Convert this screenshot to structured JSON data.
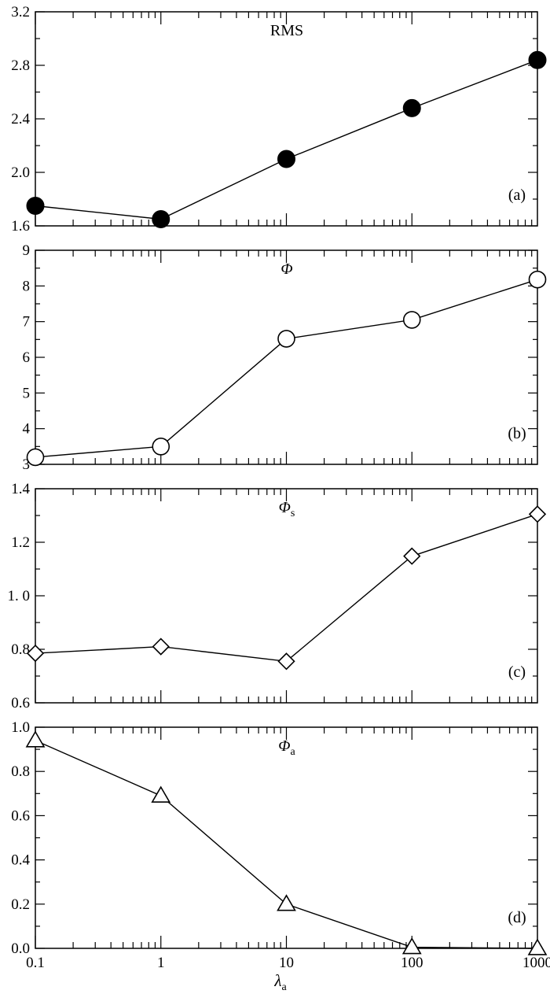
{
  "chart_data": [
    {
      "type": "line",
      "panel": "(a)",
      "title": "RMS",
      "title_sub": "",
      "x_scale": "log",
      "x": [
        0.1,
        1,
        10,
        100,
        1000
      ],
      "series": [
        {
          "values": [
            1.75,
            1.65,
            2.1,
            2.48,
            2.84
          ],
          "marker": "filled-circle"
        }
      ],
      "ylim": [
        1.6,
        3.2
      ],
      "yticks": [
        1.6,
        2.0,
        2.4,
        2.8,
        3.2
      ],
      "ytick_labels": [
        "1.6",
        "2.0",
        "2.4",
        "2.8",
        "3.2"
      ]
    },
    {
      "type": "line",
      "panel": "(b)",
      "title": "Φ",
      "title_sub": "",
      "x_scale": "log",
      "x": [
        0.1,
        1,
        10,
        100,
        1000
      ],
      "series": [
        {
          "values": [
            3.2,
            3.5,
            6.52,
            7.05,
            8.18
          ],
          "marker": "open-circle"
        }
      ],
      "ylim": [
        3,
        9
      ],
      "yticks": [
        3,
        4,
        5,
        6,
        7,
        8,
        9
      ],
      "ytick_labels": [
        "3",
        "4",
        "5",
        "6",
        "7",
        "8",
        "9"
      ]
    },
    {
      "type": "line",
      "panel": "(c)",
      "title": "Φ",
      "title_sub": "s",
      "x_scale": "log",
      "x": [
        0.1,
        1,
        10,
        100,
        1000
      ],
      "series": [
        {
          "values": [
            0.785,
            0.81,
            0.755,
            1.148,
            1.305
          ],
          "marker": "open-diamond"
        }
      ],
      "ylim": [
        0.6,
        1.4
      ],
      "yticks": [
        0.6,
        0.8,
        1.0,
        1.2,
        1.4
      ],
      "ytick_labels": [
        "0.6",
        "0.8",
        "1. 0",
        "1.2",
        "1.4"
      ]
    },
    {
      "type": "line",
      "panel": "(d)",
      "title": "Φ",
      "title_sub": "a",
      "x_scale": "log",
      "x": [
        0.1,
        1,
        10,
        100,
        1000
      ],
      "series": [
        {
          "values": [
            0.94,
            0.69,
            0.2,
            0.005,
            0.0
          ],
          "marker": "open-triangle"
        }
      ],
      "ylim": [
        0.0,
        1.0
      ],
      "yticks": [
        0.0,
        0.2,
        0.4,
        0.6,
        0.8,
        1.0
      ],
      "ytick_labels": [
        "0.0",
        "0.2",
        "0.4",
        "0.6",
        "0.8",
        "1.0"
      ]
    }
  ],
  "x_axis": {
    "xlim": [
      0.1,
      1000
    ],
    "tick_labels": [
      "0.1",
      "1",
      "10",
      "100",
      "1000"
    ],
    "label": "λ",
    "label_sub": "a"
  }
}
